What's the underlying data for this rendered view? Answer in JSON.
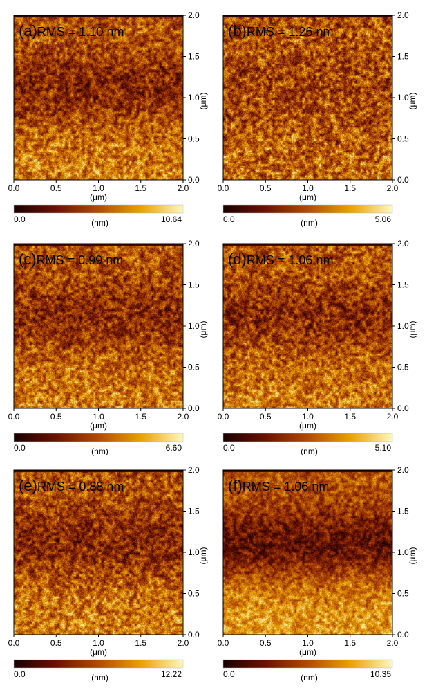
{
  "chart_data": [
    {
      "type": "heatmap",
      "panel_label": "(a)",
      "annotation": "RMS = 1.10 nm",
      "xlabel": "(μm)",
      "ylabel": "(μm)",
      "xlim": [
        0,
        2
      ],
      "ylim": [
        0,
        2
      ],
      "x_ticks": [
        "0.0",
        "0.5",
        "1.0",
        "1.5",
        "2.0"
      ],
      "y_ticks": [
        "0.0",
        "0.5",
        "1.0",
        "1.5",
        "2.0"
      ],
      "colorbar": {
        "min_label": "0.0",
        "max_label": "10.64",
        "unit": "(nm)",
        "min": 0,
        "max": 10.64
      }
    },
    {
      "type": "heatmap",
      "panel_label": "(b)",
      "annotation": "RMS = 1.26 nm",
      "xlabel": "(μm)",
      "ylabel": "(μm)",
      "xlim": [
        0,
        2
      ],
      "ylim": [
        0,
        2
      ],
      "x_ticks": [
        "0.0",
        "0.5",
        "1.0",
        "1.5",
        "2.0"
      ],
      "y_ticks": [
        "0.0",
        "0.5",
        "1.0",
        "1.5",
        "2.0"
      ],
      "colorbar": {
        "min_label": "0.0",
        "max_label": "5.06",
        "unit": "(nm)",
        "min": 0,
        "max": 5.06
      }
    },
    {
      "type": "heatmap",
      "panel_label": "(c)",
      "annotation": "RMS = 0.99 nm",
      "xlabel": "(μm)",
      "ylabel": "(μm)",
      "xlim": [
        0,
        2
      ],
      "ylim": [
        0,
        2
      ],
      "x_ticks": [
        "0.0",
        "0.5",
        "1.0",
        "1.5",
        "2.0"
      ],
      "y_ticks": [
        "0.0",
        "0.5",
        "1.0",
        "1.5",
        "2.0"
      ],
      "colorbar": {
        "min_label": "0.0",
        "max_label": "6.60",
        "unit": "(nm)",
        "min": 0,
        "max": 6.6
      }
    },
    {
      "type": "heatmap",
      "panel_label": "(d)",
      "annotation": "RMS = 1.06 nm",
      "xlabel": "(μm)",
      "ylabel": "(μm)",
      "xlim": [
        0,
        2
      ],
      "ylim": [
        0,
        2
      ],
      "x_ticks": [
        "0.0",
        "0.5",
        "1.0",
        "1.5",
        "2.0"
      ],
      "y_ticks": [
        "0.0",
        "0.5",
        "1.0",
        "1.5",
        "2.0"
      ],
      "colorbar": {
        "min_label": "0.0",
        "max_label": "5.10",
        "unit": "(nm)",
        "min": 0,
        "max": 5.1
      }
    },
    {
      "type": "heatmap",
      "panel_label": "(e)",
      "annotation": "RMS = 0.88 nm",
      "xlabel": "(μm)",
      "ylabel": "(μm)",
      "xlim": [
        0,
        2
      ],
      "ylim": [
        0,
        2
      ],
      "x_ticks": [
        "0.0",
        "0.5",
        "1.0",
        "1.5",
        "2.0"
      ],
      "y_ticks": [
        "0.0",
        "0.5",
        "1.0",
        "1.5",
        "2.0"
      ],
      "colorbar": {
        "min_label": "0.0",
        "max_label": "12.22",
        "unit": "(nm)",
        "min": 0,
        "max": 12.22
      }
    },
    {
      "type": "heatmap",
      "panel_label": "(f)",
      "annotation": "RMS = 1.06 nm",
      "xlabel": "(μm)",
      "ylabel": "(μm)",
      "xlim": [
        0,
        2
      ],
      "ylim": [
        0,
        2
      ],
      "x_ticks": [
        "0.0",
        "0.5",
        "1.0",
        "1.5",
        "2.0"
      ],
      "y_ticks": [
        "0.0",
        "0.5",
        "1.0",
        "1.5",
        "2.0"
      ],
      "colorbar": {
        "min_label": "0.0",
        "max_label": "10.35",
        "unit": "(nm)",
        "min": 0,
        "max": 10.35
      }
    }
  ],
  "colormap": [
    "#1a0000",
    "#6b1200",
    "#b34a00",
    "#e8a100",
    "#fff8c0"
  ]
}
